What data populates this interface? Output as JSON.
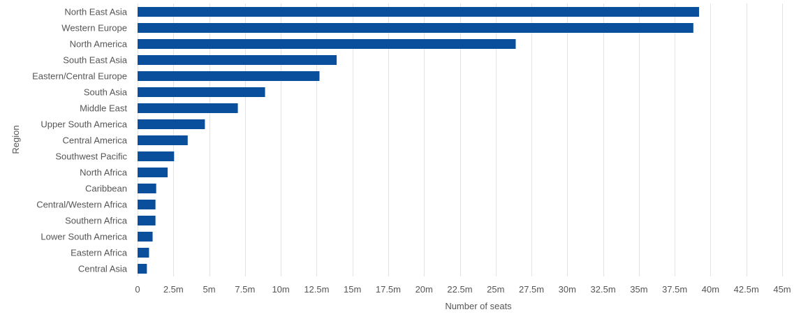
{
  "chart_data": {
    "type": "bar",
    "orientation": "horizontal",
    "xlabel": "Number of seats",
    "ylabel": "Region",
    "xlim": [
      0,
      45000000
    ],
    "grid": true,
    "bar_color": "#0a4f9c",
    "categories": [
      "North East Asia",
      "Western Europe",
      "North America",
      "South East Asia",
      "Eastern/Central Europe",
      "South Asia",
      "Middle East",
      "Upper South America",
      "Central America",
      "Southwest Pacific",
      "North Africa",
      "Caribbean",
      "Central/Western Africa",
      "Southern Africa",
      "Lower South America",
      "Eastern Africa",
      "Central Asia"
    ],
    "values": [
      39200000,
      38800000,
      26400000,
      13900000,
      12700000,
      8900000,
      7000000,
      4700000,
      3500000,
      2550000,
      2100000,
      1300000,
      1250000,
      1250000,
      1050000,
      800000,
      650000
    ],
    "ticks": [
      {
        "value": 0,
        "label": "0"
      },
      {
        "value": 2500000,
        "label": "2.5m"
      },
      {
        "value": 5000000,
        "label": "5m"
      },
      {
        "value": 7500000,
        "label": "7.5m"
      },
      {
        "value": 10000000,
        "label": "10m"
      },
      {
        "value": 12500000,
        "label": "12.5m"
      },
      {
        "value": 15000000,
        "label": "15m"
      },
      {
        "value": 17500000,
        "label": "17.5m"
      },
      {
        "value": 20000000,
        "label": "20m"
      },
      {
        "value": 22500000,
        "label": "22.5m"
      },
      {
        "value": 25000000,
        "label": "25m"
      },
      {
        "value": 27500000,
        "label": "27.5m"
      },
      {
        "value": 30000000,
        "label": "30m"
      },
      {
        "value": 32500000,
        "label": "32.5m"
      },
      {
        "value": 35000000,
        "label": "35m"
      },
      {
        "value": 37500000,
        "label": "37.5m"
      },
      {
        "value": 40000000,
        "label": "40m"
      },
      {
        "value": 42500000,
        "label": "42.5m"
      },
      {
        "value": 45000000,
        "label": "45m"
      }
    ]
  }
}
